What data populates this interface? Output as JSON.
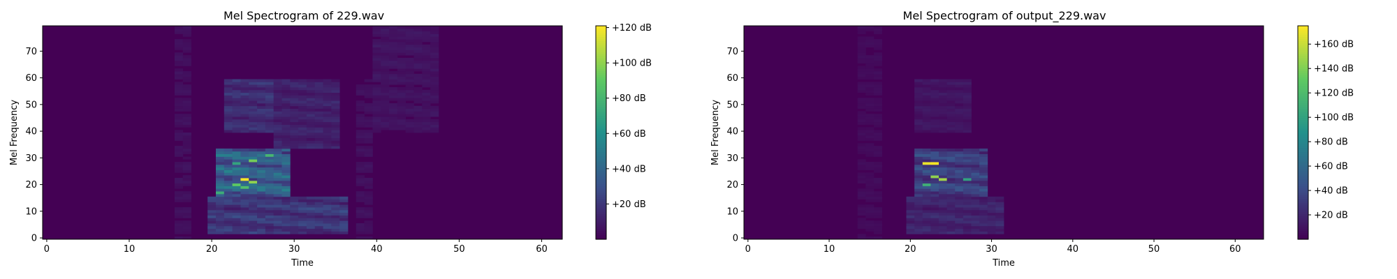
{
  "colormap": [
    "#440154",
    "#3b528b",
    "#21918c",
    "#5ec962",
    "#fde725"
  ],
  "chart_data": [
    {
      "type": "heatmap",
      "title": "Mel Spectrogram of 229.wav",
      "xlabel": "Time",
      "ylabel": "Mel Frequency",
      "xlim": [
        -0.5,
        62.5
      ],
      "ylim": [
        -0.5,
        79.5
      ],
      "xticks": [
        "0",
        "10",
        "20",
        "30",
        "40",
        "50",
        "60"
      ],
      "yticks": [
        "0",
        "10",
        "20",
        "30",
        "40",
        "50",
        "60",
        "70"
      ],
      "colorbar": {
        "vmin": 0,
        "vmax": 121,
        "ticks": [
          20,
          40,
          60,
          80,
          100,
          120
        ],
        "tick_labels": [
          "+20 dB",
          "+40 dB",
          "+60 dB",
          "+80 dB",
          "+100 dB",
          "+120 dB"
        ]
      },
      "activity": [
        {
          "t0": 16,
          "t1": 18,
          "f0": 0,
          "f1": 80,
          "level": 8
        },
        {
          "t0": 20,
          "t1": 37,
          "f0": 2,
          "f1": 16,
          "level": 30
        },
        {
          "t0": 21,
          "t1": 30,
          "f0": 16,
          "f1": 34,
          "level": 55
        },
        {
          "t0": 22,
          "t1": 28,
          "f0": 40,
          "f1": 60,
          "level": 25
        },
        {
          "t0": 28,
          "t1": 36,
          "f0": 34,
          "f1": 60,
          "level": 18
        },
        {
          "t0": 38,
          "t1": 40,
          "f0": 0,
          "f1": 60,
          "level": 8
        },
        {
          "t0": 40,
          "t1": 48,
          "f0": 40,
          "f1": 80,
          "level": 10
        }
      ],
      "peaks": [
        {
          "t": 24,
          "f": 22,
          "value": 121
        },
        {
          "t": 25,
          "f": 21,
          "value": 100
        },
        {
          "t": 23,
          "f": 20,
          "value": 90
        },
        {
          "t": 25,
          "f": 29,
          "value": 95
        },
        {
          "t": 27,
          "f": 31,
          "value": 80
        },
        {
          "t": 21,
          "f": 17,
          "value": 75
        },
        {
          "t": 24,
          "f": 19,
          "value": 85
        },
        {
          "t": 23,
          "f": 28,
          "value": 70
        }
      ]
    },
    {
      "type": "heatmap",
      "title": "Mel Spectrogram of output_229.wav",
      "xlabel": "Time",
      "ylabel": "Mel Frequency",
      "xlim": [
        -0.5,
        63.5
      ],
      "ylim": [
        -0.5,
        79.5
      ],
      "xticks": [
        "0",
        "10",
        "20",
        "30",
        "40",
        "50",
        "60"
      ],
      "yticks": [
        "0",
        "10",
        "20",
        "30",
        "40",
        "50",
        "60",
        "70"
      ],
      "colorbar": {
        "vmin": 0,
        "vmax": 175,
        "ticks": [
          20,
          40,
          60,
          80,
          100,
          120,
          140,
          160
        ],
        "tick_labels": [
          "+20 dB",
          "+40 dB",
          "+60 dB",
          "+80 dB",
          "+100 dB",
          "+120 dB",
          "+140 dB",
          "+160 dB"
        ]
      },
      "activity": [
        {
          "t0": 14,
          "t1": 17,
          "f0": 0,
          "f1": 80,
          "level": 8
        },
        {
          "t0": 20,
          "t1": 32,
          "f0": 2,
          "f1": 16,
          "level": 28
        },
        {
          "t0": 21,
          "t1": 30,
          "f0": 16,
          "f1": 34,
          "level": 50
        },
        {
          "t0": 21,
          "t1": 28,
          "f0": 40,
          "f1": 60,
          "level": 16
        }
      ],
      "peaks": [
        {
          "t": 22,
          "f": 28,
          "value": 170
        },
        {
          "t": 23,
          "f": 28,
          "value": 175
        },
        {
          "t": 23,
          "f": 23,
          "value": 145
        },
        {
          "t": 24,
          "f": 22,
          "value": 150
        },
        {
          "t": 22,
          "f": 20,
          "value": 110
        },
        {
          "t": 27,
          "f": 22,
          "value": 100
        }
      ]
    }
  ]
}
